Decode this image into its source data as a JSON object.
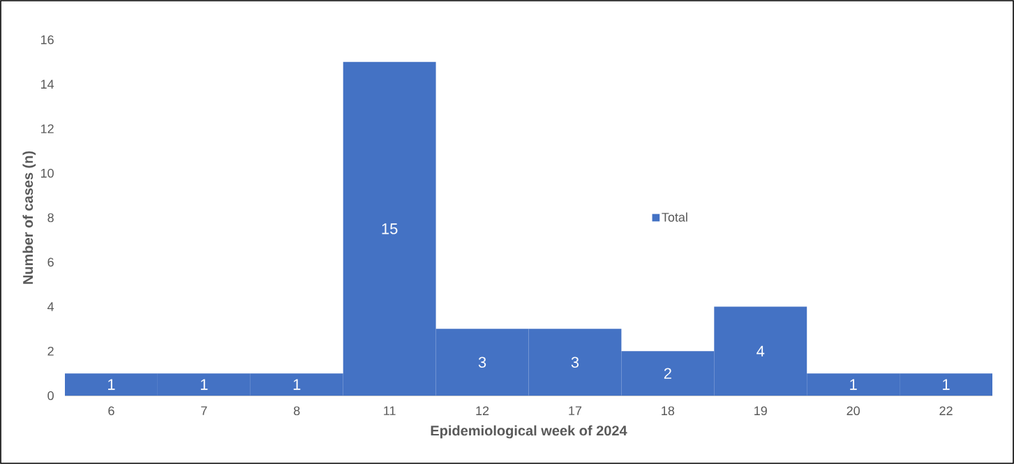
{
  "chart_data": {
    "type": "bar",
    "xlabel": "Epidemiological week of 2024",
    "ylabel": "Number of cases (n)",
    "categories": [
      "6",
      "7",
      "8",
      "11",
      "12",
      "17",
      "18",
      "19",
      "20",
      "22"
    ],
    "series": [
      {
        "name": "Total",
        "color": "#4472c4",
        "values": [
          1,
          1,
          1,
          15,
          3,
          3,
          2,
          4,
          1,
          1
        ]
      }
    ],
    "ylim": [
      0,
      16
    ],
    "yticks": [
      0,
      2,
      4,
      6,
      8,
      10,
      12,
      14,
      16
    ],
    "data_labels": true,
    "grid": false,
    "legend": "right"
  }
}
